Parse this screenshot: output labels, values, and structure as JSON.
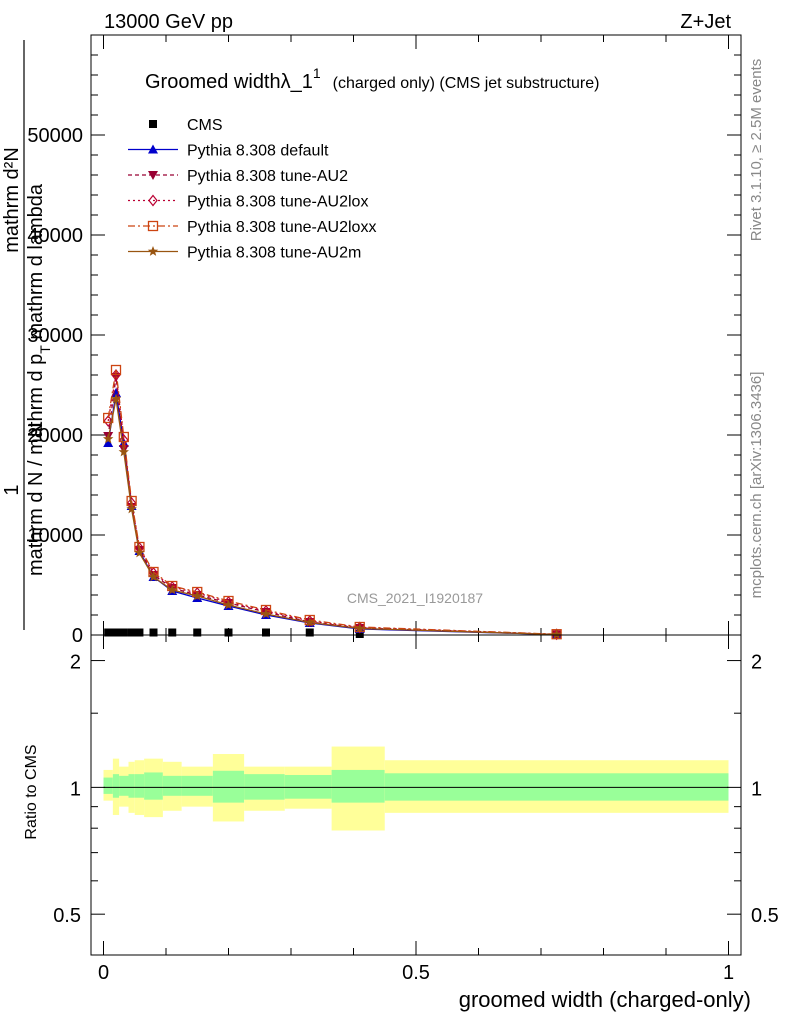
{
  "header": {
    "left": "13000 GeV pp",
    "right": "Z+Jet"
  },
  "side_labels": {
    "rivet": "Rivet 3.1.10, ≥ 2.5M events",
    "mcplots": "mcplots.cern.ch [arXiv:1306.3436]"
  },
  "chart_data": [
    {
      "type": "line",
      "title_main": "Groomed widthλ_1",
      "title_sup": "1",
      "title_rest": "(charged only) (CMS jet substructure)",
      "ylabel_main": "mathrm d N / mathrm d p",
      "ylabel_sub": "T",
      "ylabel_tail": " mathrm d lambda",
      "ylabel_top": "mathrm d²N",
      "ylabel_one": "1",
      "ylabel_n": "N",
      "analysis_id": "CMS_2021_I1920187",
      "xlim": [
        -0.02,
        1.02
      ],
      "ylim": [
        0,
        60000
      ],
      "yticks": [
        0,
        10000,
        20000,
        30000,
        40000,
        50000
      ],
      "ytick_labels": [
        "0",
        "10000",
        "20000",
        "30000",
        "40000",
        "50000"
      ],
      "legend_position": "top-left",
      "x": [
        0.0075,
        0.02,
        0.0325,
        0.045,
        0.0575,
        0.08,
        0.11,
        0.15,
        0.2,
        0.26,
        0.33,
        0.41,
        0.725
      ],
      "series": [
        {
          "name": "CMS",
          "color": "#000000",
          "marker": "square",
          "dash": "none",
          "values": [
            250,
            250,
            250,
            250,
            250,
            250,
            250,
            250,
            250,
            250,
            250,
            100,
            20
          ]
        },
        {
          "name": "Pythia 8.308 default",
          "color": "#0000cc",
          "marker": "triangle-up",
          "dash": "solid",
          "values": [
            19200,
            24200,
            19200,
            12900,
            8400,
            5800,
            4400,
            3700,
            2900,
            2000,
            1200,
            600,
            50
          ]
        },
        {
          "name": "Pythia 8.308 tune-AU2",
          "color": "#990033",
          "marker": "triangle-down",
          "dash": "4,3",
          "values": [
            19900,
            25800,
            18600,
            12800,
            8500,
            6000,
            4700,
            4000,
            3200,
            2300,
            1300,
            700,
            60
          ]
        },
        {
          "name": "Pythia 8.308 tune-AU2lox",
          "color": "#bb0033",
          "marker": "diamond",
          "dash": "2,3",
          "values": [
            21400,
            26000,
            19500,
            13200,
            8700,
            6200,
            4800,
            4200,
            3300,
            2400,
            1400,
            750,
            70
          ]
        },
        {
          "name": "Pythia 8.308 tune-AU2loxx",
          "color": "#cc4411",
          "marker": "square-open",
          "dash": "7,3,2,3",
          "values": [
            21700,
            26500,
            19800,
            13400,
            8800,
            6300,
            4900,
            4300,
            3400,
            2500,
            1500,
            800,
            80
          ]
        },
        {
          "name": "Pythia 8.308 tune-AU2m",
          "color": "#995511",
          "marker": "star",
          "dash": "solid",
          "values": [
            19600,
            23600,
            18300,
            12600,
            8200,
            5800,
            4500,
            3900,
            3000,
            2100,
            1250,
            650,
            55
          ]
        }
      ]
    },
    {
      "type": "area",
      "ylabel": "Ratio to CMS",
      "xlabel": "groomed width (charged-only)",
      "xlim": [
        -0.02,
        1.02
      ],
      "ylim": [
        0.4,
        2.3
      ],
      "log_y": true,
      "yticks": [
        0.5,
        1,
        2
      ],
      "ytick_labels": [
        "0.5",
        "1",
        "2"
      ],
      "xticks": [
        0,
        0.5,
        1
      ],
      "xtick_labels": [
        "0",
        "0.5",
        "1"
      ],
      "bin_edges": [
        0,
        0.015,
        0.025,
        0.04,
        0.05,
        0.065,
        0.095,
        0.125,
        0.175,
        0.225,
        0.29,
        0.365,
        0.45,
        1.0
      ],
      "green_band": [
        [
          0.965,
          1.055
        ],
        [
          0.945,
          1.075
        ],
        [
          0.955,
          1.065
        ],
        [
          0.945,
          1.075
        ],
        [
          0.945,
          1.075
        ],
        [
          0.935,
          1.085
        ],
        [
          0.955,
          1.065
        ],
        [
          0.955,
          1.065
        ],
        [
          0.92,
          1.095
        ],
        [
          0.935,
          1.075
        ],
        [
          0.94,
          1.07
        ],
        [
          0.92,
          1.1
        ],
        [
          0.93,
          1.08
        ]
      ],
      "yellow_band": [
        [
          0.93,
          1.1
        ],
        [
          0.86,
          1.17
        ],
        [
          0.9,
          1.12
        ],
        [
          0.87,
          1.15
        ],
        [
          0.86,
          1.16
        ],
        [
          0.85,
          1.17
        ],
        [
          0.88,
          1.15
        ],
        [
          0.9,
          1.12
        ],
        [
          0.83,
          1.2
        ],
        [
          0.88,
          1.12
        ],
        [
          0.89,
          1.12
        ],
        [
          0.79,
          1.25
        ],
        [
          0.87,
          1.16
        ]
      ],
      "band_colors": {
        "inner": "#99ff99",
        "outer": "#ffff99"
      },
      "reference_line": 1
    }
  ]
}
